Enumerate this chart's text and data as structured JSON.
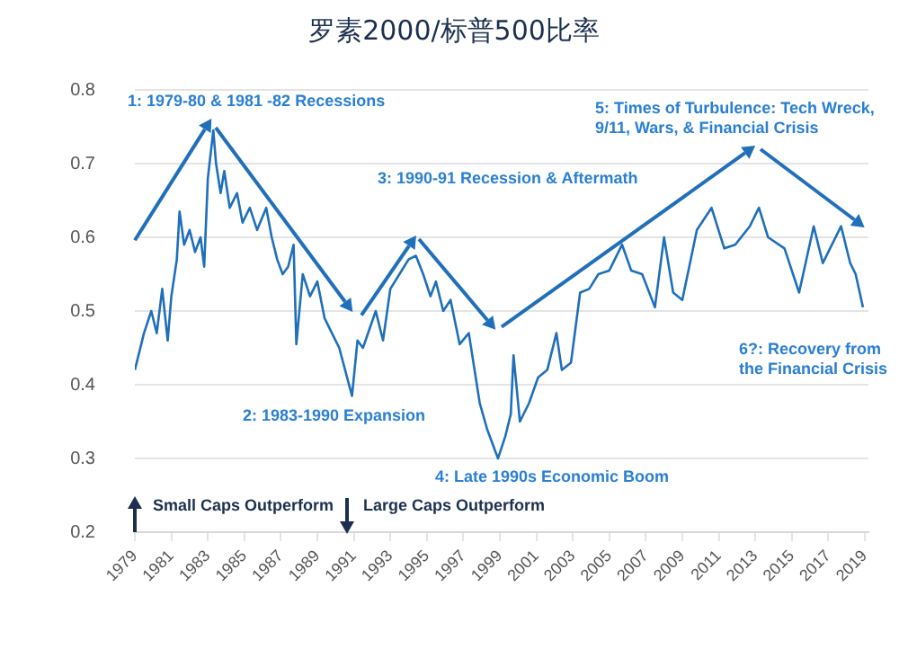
{
  "chart_data": {
    "type": "line",
    "title": "罗素2000/标普500比率",
    "annotations": [
      "1: 1979-80 & 1981 -82 Recessions",
      "2: 1983-1990 Expansion",
      "3: 1990-91 Recession & Aftermath",
      "4: Late 1990s Economic Boom",
      "5: Times of Turbulence: Tech Wreck,\n9/11, Wars, & Financial Crisis",
      "6?: Recovery from\nthe Financial Crisis",
      "Small Caps Outperform",
      "Large Caps Outperform"
    ],
    "series": [
      {
        "color": "#1f6fba",
        "x": [
          1979.0,
          1979.5,
          1979.9,
          1980.2,
          1980.5,
          1980.8,
          1981.0,
          1981.3,
          1981.45,
          1981.7,
          1982.0,
          1982.3,
          1982.6,
          1982.8,
          1983.0,
          1983.3,
          1983.45,
          1983.7,
          1983.9,
          1984.2,
          1984.6,
          1984.9,
          1985.3,
          1985.7,
          1986.2,
          1986.5,
          1986.8,
          1987.1,
          1987.4,
          1987.7,
          1987.85,
          1988.2,
          1988.6,
          1989.0,
          1989.4,
          1989.8,
          1990.2,
          1990.9,
          1991.2,
          1991.5,
          1992.2,
          1992.6,
          1993.0,
          1993.5,
          1994.0,
          1994.4,
          1994.8,
          1995.2,
          1995.5,
          1995.9,
          1996.3,
          1996.8,
          1997.3,
          1997.9,
          1998.3,
          1998.9,
          1999.3,
          1999.6,
          1999.75,
          2000.1,
          2000.6,
          2001.1,
          2001.6,
          2002.1,
          2002.4,
          2002.9,
          2003.4,
          2003.9,
          2004.4,
          2005.0,
          2005.7,
          2006.2,
          2006.8,
          2007.5,
          2008.0,
          2008.5,
          2009.0,
          2009.8,
          2010.6,
          2011.3,
          2011.9,
          2012.7,
          2013.2,
          2013.7,
          2014.6,
          2015.4,
          2016.2,
          2016.7,
          2017.2,
          2017.7,
          2018.2,
          2018.5,
          2018.9
        ],
        "values": [
          0.42,
          0.47,
          0.5,
          0.47,
          0.53,
          0.46,
          0.52,
          0.57,
          0.635,
          0.59,
          0.61,
          0.58,
          0.6,
          0.56,
          0.68,
          0.745,
          0.7,
          0.66,
          0.69,
          0.64,
          0.66,
          0.62,
          0.64,
          0.61,
          0.64,
          0.6,
          0.57,
          0.55,
          0.56,
          0.59,
          0.455,
          0.55,
          0.52,
          0.54,
          0.49,
          0.47,
          0.45,
          0.385,
          0.46,
          0.45,
          0.5,
          0.46,
          0.53,
          0.55,
          0.57,
          0.575,
          0.55,
          0.52,
          0.54,
          0.5,
          0.515,
          0.455,
          0.47,
          0.375,
          0.34,
          0.3,
          0.33,
          0.36,
          0.44,
          0.35,
          0.375,
          0.41,
          0.42,
          0.47,
          0.42,
          0.43,
          0.525,
          0.53,
          0.55,
          0.555,
          0.59,
          0.555,
          0.55,
          0.505,
          0.6,
          0.525,
          0.515,
          0.61,
          0.64,
          0.585,
          0.59,
          0.615,
          0.64,
          0.6,
          0.585,
          0.525,
          0.615,
          0.565,
          0.59,
          0.615,
          0.565,
          0.55,
          0.505
        ]
      }
    ],
    "xlim": [
      1979,
      2019.2
    ],
    "xticks": [
      1979,
      1981,
      1983,
      1985,
      1987,
      1989,
      1991,
      1993,
      1995,
      1997,
      1999,
      2001,
      2003,
      2005,
      2007,
      2009,
      2011,
      2013,
      2015,
      2017,
      2019
    ],
    "ylim": [
      0.2,
      0.8
    ],
    "yticks": [
      0.2,
      0.3,
      0.4,
      0.5,
      0.6,
      0.7,
      0.8
    ],
    "grid": "y",
    "legend": false,
    "marker": "none",
    "line_style": "solid"
  }
}
